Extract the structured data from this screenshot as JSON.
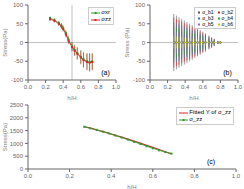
{
  "chart_data": [
    {
      "type": "line",
      "xlabel": "h/H",
      "ylabel": "Stress(Pa)",
      "annotations": [
        "(a)"
      ],
      "legend": "upper right",
      "grid": false,
      "x": [
        0.25,
        0.3,
        0.35,
        0.38,
        0.4,
        0.43,
        0.46,
        0.5,
        0.53,
        0.56,
        0.6,
        0.63,
        0.67,
        0.7,
        0.73
      ],
      "xlim": [
        0.0,
        1.0
      ],
      "xticks": [
        {
          "value": 0,
          "label": "0.0"
        },
        0.2,
        0.4,
        0.6,
        0.8,
        {
          "value": 1,
          "label": "1.0"
        }
      ],
      "ylim": [
        -100,
        100
      ],
      "yticks": [
        -100,
        -50,
        0,
        50,
        100
      ],
      "reference_lines": {
        "x": [
          0.5
        ],
        "y": [
          0
        ]
      },
      "series": [
        {
          "name": "σxr",
          "color": "#2ca02c",
          "marker": "square",
          "line_style": "solid",
          "values": [
            65,
            60,
            52,
            45,
            38,
            25,
            8,
            -10,
            -20,
            -28,
            -38,
            -45,
            -50,
            -52,
            -50
          ],
          "errors": [
            5,
            5,
            6,
            7,
            7,
            8,
            9,
            12,
            14,
            16,
            18,
            20,
            22,
            24,
            22
          ]
        },
        {
          "name": "σzz",
          "color": "#d62728",
          "marker": "square",
          "line_style": "solid",
          "values": [
            62,
            58,
            50,
            43,
            36,
            22,
            5,
            -12,
            -22,
            -30,
            -40,
            -47,
            -52,
            -54,
            -52
          ],
          "errors": [
            5,
            5,
            6,
            7,
            7,
            8,
            9,
            12,
            14,
            16,
            18,
            20,
            22,
            24,
            22
          ]
        }
      ]
    },
    {
      "type": "scatter",
      "xlabel": "h/H",
      "ylabel": "Stress (Pa)",
      "annotations": [
        "(b)"
      ],
      "legend": "upper right",
      "grid": false,
      "x": [
        0.27,
        0.3,
        0.33,
        0.36,
        0.39,
        0.42,
        0.45,
        0.48,
        0.51,
        0.54,
        0.57,
        0.6,
        0.63,
        0.67,
        0.7,
        0.73,
        0.77,
        0.8
      ],
      "xlim": [
        0.0,
        1.0
      ],
      "xticks": [
        {
          "value": 0,
          "label": "0.0"
        },
        0.2,
        0.4,
        0.6,
        0.8,
        {
          "value": 1,
          "label": "1.0"
        }
      ],
      "ylim": [
        -100,
        100
      ],
      "yticks": [
        -100,
        -50,
        0,
        50,
        100
      ],
      "reference_lines": {
        "y": [
          0
        ]
      },
      "series": [
        {
          "name": "σ_b1",
          "color": "#555555",
          "marker": "square",
          "values": [
            0,
            0,
            0,
            0,
            0,
            0,
            0,
            0,
            0,
            0,
            0,
            0,
            0,
            0,
            0,
            0,
            0,
            0
          ],
          "errors": [
            76,
            71.7,
            67.4,
            63.09,
            58.79,
            54.49,
            50.19,
            45.89,
            41.58,
            37.28,
            32.98,
            28.68,
            24.38,
            18.64,
            14.34,
            10.04,
            4.3,
            0
          ]
        },
        {
          "name": "σ_b2",
          "color": "#d62728",
          "marker": "square",
          "values": [
            0,
            0,
            0,
            0,
            0,
            0,
            0,
            0,
            0,
            0,
            0,
            0,
            0,
            0,
            0,
            0,
            0,
            0
          ],
          "errors": [
            66.88,
            63.09,
            59.31,
            55.52,
            51.74,
            47.95,
            44.17,
            40.38,
            36.59,
            32.81,
            29.02,
            25.24,
            21.45,
            16.4,
            12.62,
            8.83,
            3.79,
            0
          ]
        },
        {
          "name": "σ_b3",
          "color": "#1f77b4",
          "marker": "square",
          "values": [
            0,
            0,
            0,
            0,
            0,
            0,
            0,
            0,
            0,
            0,
            0,
            0,
            0,
            0,
            0,
            0,
            0,
            0
          ],
          "errors": [
            54.72,
            51.62,
            48.53,
            45.43,
            42.33,
            39.23,
            36.14,
            33.04,
            29.94,
            26.84,
            23.75,
            20.65,
            17.55,
            13.42,
            10.32,
            7.23,
            3.1,
            0
          ]
        },
        {
          "name": "σ_b4",
          "color": "#2ca02c",
          "marker": "square",
          "values": [
            0,
            0,
            0,
            0,
            0,
            0,
            0,
            0,
            0,
            0,
            0,
            0,
            0,
            0,
            0,
            0,
            0,
            0
          ],
          "errors": [
            41.8,
            39.43,
            37.07,
            34.7,
            32.34,
            29.97,
            27.6,
            25.24,
            22.87,
            20.51,
            18.14,
            15.77,
            13.41,
            10.25,
            7.89,
            5.52,
            2.37,
            0
          ]
        },
        {
          "name": "σ_b5",
          "color": "#9467bd",
          "marker": "square",
          "values": [
            0,
            0,
            0,
            0,
            0,
            0,
            0,
            0,
            0,
            0,
            0,
            0,
            0,
            0,
            0,
            0,
            0,
            0
          ],
          "errors": [
            28.88,
            27.25,
            25.61,
            23.98,
            22.34,
            20.71,
            19.07,
            17.44,
            15.8,
            14.17,
            12.53,
            10.9,
            9.26,
            7.08,
            5.45,
            3.81,
            1.63,
            0
          ]
        },
        {
          "name": "σ_b6",
          "color": "#bcbd22",
          "marker": "square",
          "values": [
            0,
            0,
            0,
            0,
            0,
            0,
            0,
            0,
            0,
            0,
            0,
            0,
            0,
            0,
            0,
            0,
            0,
            0
          ],
          "errors": [
            16.72,
            15.77,
            14.83,
            13.88,
            12.93,
            11.99,
            11.04,
            10.1,
            9.15,
            8.2,
            7.26,
            6.31,
            5.36,
            4.1,
            3.15,
            2.21,
            0.95,
            0
          ]
        }
      ]
    },
    {
      "type": "line",
      "xlabel": "h/H",
      "ylabel": "Stress(Pa)",
      "annotations": [
        "(c)"
      ],
      "legend": "upper right",
      "grid": false,
      "x": [
        0.27,
        0.3,
        0.33,
        0.36,
        0.39,
        0.42,
        0.45,
        0.48,
        0.51,
        0.54,
        0.57,
        0.6,
        0.63,
        0.66,
        0.69
      ],
      "xlim": [
        0.0,
        1.0
      ],
      "xticks": [
        {
          "value": 0,
          "label": "0.0"
        },
        0.2,
        0.4,
        0.6,
        0.8,
        {
          "value": 1,
          "label": "1.0"
        }
      ],
      "ylim": [
        0,
        2500
      ],
      "yticks": [
        0,
        500,
        1000,
        1500,
        2000,
        2500
      ],
      "series": [
        {
          "name": "Fitted Y of σ_zz",
          "color": "#d62728",
          "line_style": "solid",
          "values": [
            1660,
            1595,
            1528,
            1458,
            1388,
            1318,
            1242,
            1168,
            1090,
            1010,
            926,
            846,
            762,
            674,
            592
          ]
        },
        {
          "name": "σ_zz",
          "color": "#2ca02c",
          "marker": "square",
          "line_style": "solid",
          "values": [
            1650,
            1590,
            1530,
            1460,
            1390,
            1310,
            1230,
            1150,
            1060,
            980,
            890,
            810,
            730,
            660,
            600
          ],
          "errors": [
            12,
            12,
            12,
            12,
            12,
            12,
            12,
            12,
            12,
            12,
            12,
            12,
            12,
            12,
            12
          ]
        }
      ]
    }
  ]
}
